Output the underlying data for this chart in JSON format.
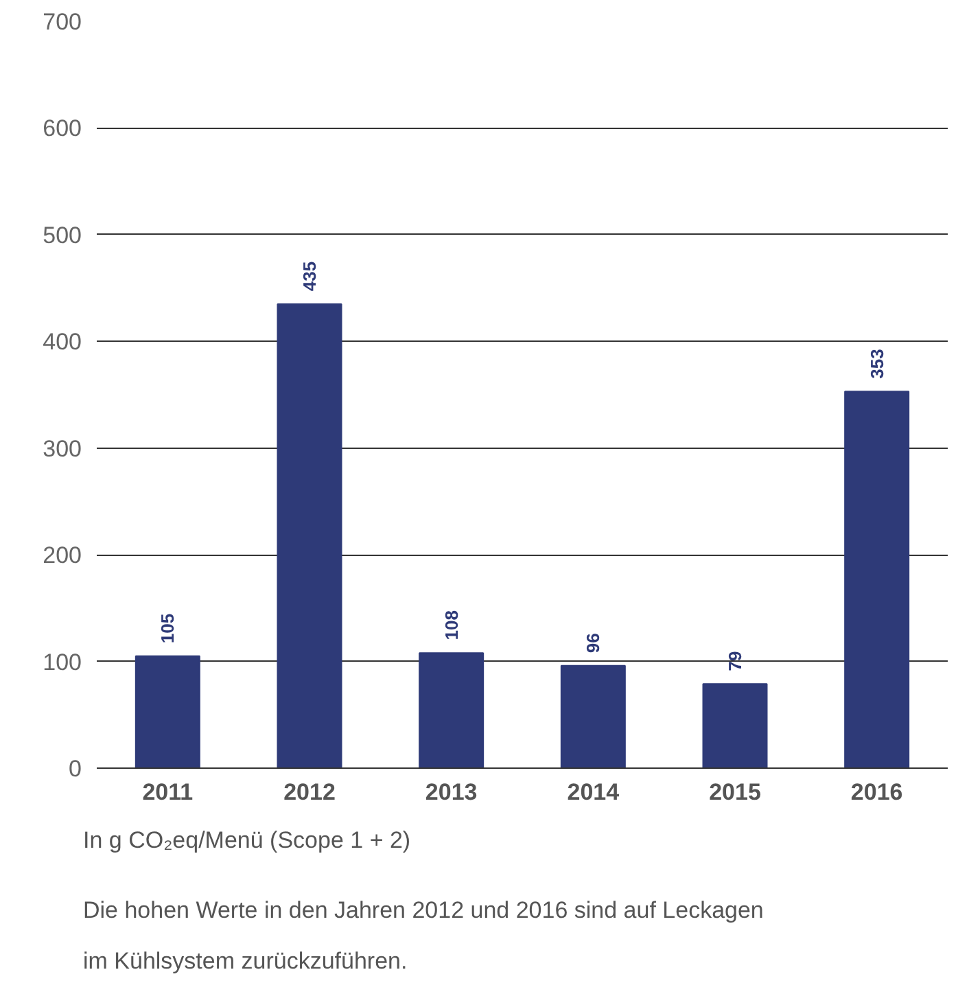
{
  "chart_data": {
    "type": "bar",
    "categories": [
      "2011",
      "2012",
      "2013",
      "2014",
      "2015",
      "2016"
    ],
    "values": [
      105,
      435,
      108,
      96,
      79,
      353
    ],
    "color": "#2e3a78",
    "ylim": [
      0,
      700
    ],
    "yticks": [
      0,
      100,
      200,
      300,
      400,
      500,
      600,
      700
    ],
    "grid": "y",
    "data_labels": true,
    "annotations": [
      "In g CO₂eq/Menü (Scope 1 + 2)",
      "Die hohen Werte in den Jahren 2012 und 2016 sind auf Leckagen im Kühlsystem zurückzuführen."
    ]
  }
}
